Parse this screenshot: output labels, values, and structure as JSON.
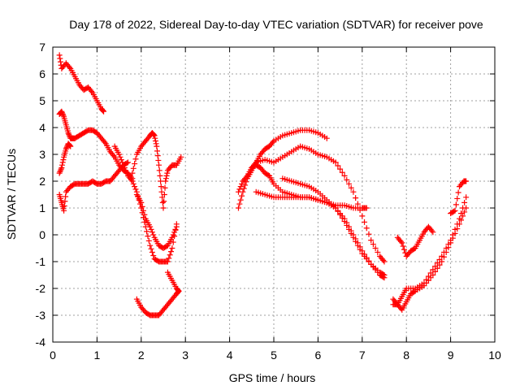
{
  "chart_data": {
    "type": "scatter",
    "title": "Day 178 of 2022, Sidereal Day-to-day VTEC variation (SDTVAR) for receiver pove",
    "xlabel": "GPS time / hours",
    "ylabel": "SDTVAR / TECUs",
    "xlim": [
      0,
      10
    ],
    "ylim": [
      -4,
      7
    ],
    "x_ticks": [
      0,
      1,
      2,
      3,
      4,
      5,
      6,
      7,
      8,
      9,
      10
    ],
    "y_ticks": [
      -4,
      -3,
      -2,
      -1,
      0,
      1,
      2,
      3,
      4,
      5,
      6,
      7
    ],
    "x_tick_labels": [
      "0",
      "1",
      "2",
      "3",
      "4",
      "5",
      "6",
      "7",
      "8",
      "9",
      "10"
    ],
    "y_tick_labels": [
      "-4",
      "-3",
      "-2",
      "-1",
      "0",
      "1",
      "2",
      "3",
      "4",
      "5",
      "6",
      "7"
    ],
    "grid": true,
    "marker": "+",
    "color": "#ff0000",
    "series": [
      {
        "x": [
          0.15,
          0.2,
          0.3,
          0.4,
          0.5,
          0.6,
          0.7,
          0.8,
          0.9,
          1.0,
          1.1,
          1.15
        ],
        "y": [
          6.7,
          6.2,
          6.4,
          6.2,
          5.9,
          5.6,
          5.4,
          5.5,
          5.3,
          5.0,
          4.7,
          4.6
        ]
      },
      {
        "x": [
          0.15,
          0.2,
          0.25,
          0.3,
          0.35,
          0.4,
          0.45,
          0.5,
          0.6,
          0.7,
          0.8,
          0.9,
          1.0,
          1.1,
          1.2,
          1.3,
          1.4,
          1.5,
          1.6,
          1.7,
          1.8
        ],
        "y": [
          4.5,
          4.6,
          4.4,
          4.1,
          3.8,
          3.6,
          3.6,
          3.6,
          3.7,
          3.8,
          3.9,
          3.9,
          3.8,
          3.6,
          3.4,
          3.1,
          2.9,
          2.6,
          2.4,
          2.3,
          2.1
        ]
      },
      {
        "x": [
          0.15,
          0.2,
          0.25,
          0.3,
          0.35,
          0.4
        ],
        "y": [
          2.3,
          2.5,
          2.9,
          3.2,
          3.4,
          3.3
        ]
      },
      {
        "x": [
          0.15,
          0.2,
          0.25,
          0.3,
          0.4,
          0.5,
          0.6,
          0.7,
          0.8,
          0.9,
          1.0,
          1.1,
          1.2,
          1.3,
          1.4,
          1.5,
          1.6,
          1.7
        ],
        "y": [
          1.5,
          1.2,
          0.9,
          1.6,
          1.8,
          1.9,
          1.9,
          1.9,
          1.9,
          2.0,
          1.9,
          1.9,
          2.0,
          2.0,
          2.2,
          2.4,
          2.6,
          2.7
        ]
      },
      {
        "x": [
          1.4,
          1.5,
          1.6,
          1.7,
          1.8,
          1.9,
          2.0,
          2.1,
          2.2,
          2.3,
          2.4,
          2.5,
          2.6,
          2.7,
          2.8
        ],
        "y": [
          3.3,
          3.0,
          2.6,
          2.2,
          2.0,
          1.6,
          1.0,
          0.3,
          -0.4,
          -0.9,
          -1.0,
          -1.0,
          -1.0,
          -0.5,
          0.4
        ]
      },
      {
        "x": [
          1.8,
          1.9,
          2.0,
          2.1,
          2.2,
          2.25,
          2.3,
          2.35,
          2.4,
          2.45,
          2.5,
          2.55,
          2.6,
          2.7,
          2.8,
          2.9
        ],
        "y": [
          2.3,
          3.0,
          3.3,
          3.5,
          3.7,
          3.8,
          3.7,
          3.3,
          2.6,
          1.8,
          1.0,
          2.0,
          2.4,
          2.6,
          2.6,
          2.9
        ]
      },
      {
        "x": [
          1.9,
          2.0,
          2.1,
          2.2,
          2.3,
          2.4,
          2.5,
          2.6,
          2.7,
          2.8
        ],
        "y": [
          1.5,
          1.2,
          0.6,
          0.3,
          -0.1,
          -0.4,
          -0.5,
          -0.4,
          -0.1,
          0.3
        ]
      },
      {
        "x": [
          1.9,
          2.0,
          2.1,
          2.2,
          2.3,
          2.4,
          2.5,
          2.6,
          2.7,
          2.8,
          2.85
        ],
        "y": [
          -2.4,
          -2.7,
          -2.9,
          -3.0,
          -3.0,
          -3.0,
          -2.8,
          -2.6,
          -2.4,
          -2.2,
          -2.1
        ]
      },
      {
        "x": [
          2.6,
          2.7,
          2.8,
          2.85
        ],
        "y": [
          -1.4,
          -1.7,
          -2.0,
          -2.1
        ]
      },
      {
        "x": [
          4.2,
          4.3,
          4.4,
          4.5,
          4.6,
          4.7,
          4.8,
          4.9,
          5.0,
          5.2,
          5.4,
          5.6,
          5.8,
          6.0,
          6.2
        ],
        "y": [
          1.0,
          1.6,
          2.1,
          2.4,
          2.7,
          3.0,
          3.2,
          3.3,
          3.5,
          3.7,
          3.8,
          3.9,
          3.9,
          3.8,
          3.6
        ]
      },
      {
        "x": [
          4.2,
          4.3,
          4.4,
          4.5,
          4.6,
          4.7,
          4.8,
          4.9,
          5.0,
          5.2,
          5.4,
          5.6,
          5.8,
          6.0,
          6.2,
          6.4,
          6.6,
          6.8,
          7.0,
          7.2,
          7.4,
          7.5
        ],
        "y": [
          1.6,
          2.0,
          2.2,
          2.5,
          2.6,
          2.5,
          2.3,
          2.2,
          1.9,
          1.6,
          1.5,
          1.4,
          1.4,
          1.3,
          1.2,
          1.0,
          0.5,
          -0.1,
          -0.7,
          -1.1,
          -1.4,
          -1.5
        ]
      },
      {
        "x": [
          4.5,
          4.6,
          4.8,
          5.0,
          5.2,
          5.4,
          5.6,
          5.8,
          6.0,
          6.2,
          6.4,
          6.6,
          6.8,
          7.0,
          7.2,
          7.4,
          7.5
        ],
        "y": [
          2.5,
          2.7,
          2.8,
          2.7,
          2.9,
          3.1,
          3.3,
          3.2,
          3.0,
          2.9,
          2.7,
          2.2,
          1.6,
          0.7,
          -0.2,
          -0.8,
          -1.0
        ]
      },
      {
        "x": [
          4.6,
          4.8,
          5.0,
          5.2,
          5.4,
          5.6,
          5.8,
          6.0,
          6.2,
          6.4,
          6.6,
          6.8,
          7.0,
          7.1
        ],
        "y": [
          1.6,
          1.5,
          1.4,
          1.4,
          1.4,
          1.4,
          1.4,
          1.3,
          1.2,
          1.1,
          1.1,
          1.0,
          1.0,
          1.0
        ]
      },
      {
        "x": [
          5.2,
          5.4,
          5.6,
          5.8,
          6.0,
          6.2,
          6.4,
          6.6,
          6.8,
          7.0,
          7.2,
          7.4,
          7.5
        ],
        "y": [
          2.1,
          2.0,
          1.9,
          1.8,
          1.6,
          1.3,
          1.0,
          0.6,
          0.0,
          -0.6,
          -1.1,
          -1.5,
          -1.6
        ]
      },
      {
        "x": [
          7.7,
          7.8,
          7.9,
          8.0,
          8.1,
          8.2,
          8.4,
          8.6,
          8.8,
          9.0,
          9.2,
          9.35
        ],
        "y": [
          -2.4,
          -2.6,
          -2.8,
          -2.5,
          -2.2,
          -2.1,
          -1.9,
          -1.5,
          -1.0,
          -0.3,
          0.4,
          1.0
        ]
      },
      {
        "x": [
          7.7,
          7.8,
          7.9,
          8.0,
          8.2,
          8.4,
          8.6,
          8.8,
          9.0,
          9.2,
          9.35
        ],
        "y": [
          -2.6,
          -2.6,
          -2.3,
          -2.0,
          -2.0,
          -1.8,
          -1.3,
          -0.8,
          -0.2,
          0.6,
          1.4
        ]
      },
      {
        "x": [
          7.8,
          7.9,
          8.0,
          8.1,
          8.2,
          8.3,
          8.4,
          8.5,
          8.6
        ],
        "y": [
          -0.1,
          -0.3,
          -0.8,
          -0.6,
          -0.5,
          -0.2,
          0.1,
          0.3,
          0.1
        ]
      },
      {
        "x": [
          9.0,
          9.1,
          9.2,
          9.3,
          9.35
        ],
        "y": [
          0.8,
          0.9,
          1.8,
          2.0,
          2.0
        ]
      }
    ]
  }
}
